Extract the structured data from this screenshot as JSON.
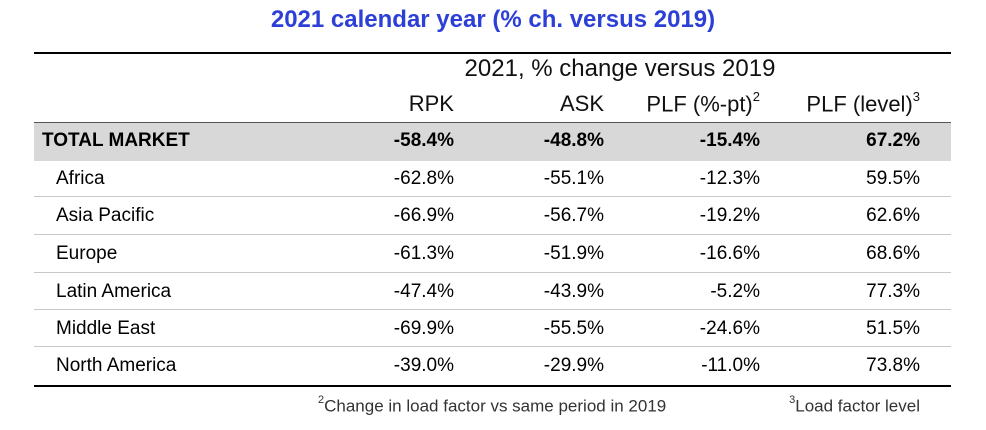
{
  "title": "2021 calendar year (% ch. versus 2019)",
  "super_header": "2021, % change versus 2019",
  "columns": {
    "rpk": "RPK",
    "ask": "ASK",
    "plf_pt": "PLF (%-pt)",
    "plf_pt_note": "2",
    "plf_level": "PLF (level)",
    "plf_level_note": "3"
  },
  "rows": [
    {
      "label": "TOTAL MARKET",
      "rpk": "-58.4%",
      "ask": "-48.8%",
      "plf_pt": "-15.4%",
      "plf_level": "67.2%"
    },
    {
      "label": "Africa",
      "rpk": "-62.8%",
      "ask": "-55.1%",
      "plf_pt": "-12.3%",
      "plf_level": "59.5%"
    },
    {
      "label": "Asia Pacific",
      "rpk": "-66.9%",
      "ask": "-56.7%",
      "plf_pt": "-19.2%",
      "plf_level": "62.6%"
    },
    {
      "label": "Europe",
      "rpk": "-61.3%",
      "ask": "-51.9%",
      "plf_pt": "-16.6%",
      "plf_level": "68.6%"
    },
    {
      "label": "Latin America",
      "rpk": "-47.4%",
      "ask": "-43.9%",
      "plf_pt": "-5.2%",
      "plf_level": "77.3%"
    },
    {
      "label": "Middle East",
      "rpk": "-69.9%",
      "ask": "-55.5%",
      "plf_pt": "-24.6%",
      "plf_level": "51.5%"
    },
    {
      "label": "North America",
      "rpk": "-39.0%",
      "ask": "-29.9%",
      "plf_pt": "-11.0%",
      "plf_level": "73.8%"
    }
  ],
  "footnotes": {
    "note2_mark": "2",
    "note2_text": "Change in load factor vs same period in 2019",
    "note3_mark": "3",
    "note3_text": "Load factor level"
  },
  "colors": {
    "title": "#2c3fd6",
    "total_row_bg": "#d8d8d8"
  }
}
